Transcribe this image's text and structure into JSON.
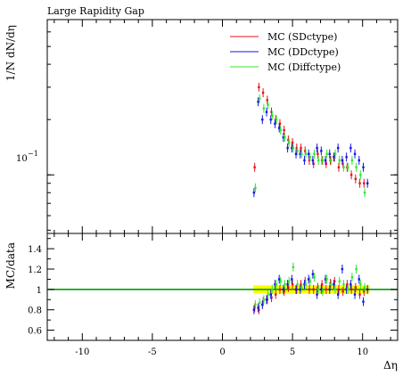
{
  "chart_data": {
    "title": "Large Rapidity Gap",
    "xlabel": "Δη",
    "ylabel_main": "1/N dN/dη",
    "ylabel_ratio": "MC/data",
    "x_ticks": [
      "-10",
      "-5",
      "0",
      "5",
      "10"
    ],
    "xlim": [
      -12.5,
      12.5
    ],
    "main_ylim": [
      0.048,
      0.7
    ],
    "main_scale": "log",
    "main_y_tick_label": "10^-1",
    "ratio_ylim": [
      0.5,
      1.55
    ],
    "ratio_ticks": [
      "0.6",
      "0.8",
      "1",
      "1.2",
      "1.4"
    ],
    "legend": {
      "placement": "top-right"
    },
    "series": [
      {
        "name": "MC (SDctype)",
        "color": "#e8101a",
        "x": [
          2.3,
          2.6,
          2.9,
          3.2,
          3.5,
          3.8,
          4.1,
          4.4,
          4.7,
          5.0,
          5.3,
          5.6,
          5.9,
          6.2,
          6.5,
          6.8,
          7.1,
          7.4,
          7.7,
          8.0,
          8.3,
          8.6,
          8.9,
          9.2,
          9.5,
          9.8,
          10.1
        ],
        "values": [
          0.11,
          0.3,
          0.28,
          0.255,
          0.22,
          0.2,
          0.19,
          0.175,
          0.155,
          0.15,
          0.14,
          0.14,
          0.135,
          0.12,
          0.115,
          0.13,
          0.12,
          0.115,
          0.12,
          0.125,
          0.11,
          0.115,
          0.11,
          0.1,
          0.095,
          0.09,
          0.09
        ],
        "ratio": [
          0.82,
          0.8,
          0.88,
          0.9,
          0.92,
          0.95,
          1.0,
          0.98,
          1.02,
          1.05,
          1.0,
          1.05,
          1.08,
          1.0,
          1.0,
          1.02,
          1.05,
          1.0,
          1.06,
          1.08,
          1.0,
          0.98,
          1.05,
          1.0,
          1.02,
          0.95,
          0.98
        ]
      },
      {
        "name": "MC (DDctype)",
        "color": "#1414e6",
        "x": [
          2.25,
          2.55,
          2.85,
          3.15,
          3.45,
          3.75,
          4.05,
          4.35,
          4.65,
          4.95,
          5.25,
          5.55,
          5.85,
          6.15,
          6.45,
          6.75,
          7.05,
          7.35,
          7.65,
          7.95,
          8.25,
          8.55,
          8.85,
          9.15,
          9.45,
          9.75,
          10.05,
          10.35
        ],
        "values": [
          0.08,
          0.25,
          0.2,
          0.22,
          0.2,
          0.19,
          0.18,
          0.16,
          0.14,
          0.14,
          0.13,
          0.13,
          0.12,
          0.13,
          0.12,
          0.14,
          0.135,
          0.12,
          0.13,
          0.125,
          0.14,
          0.12,
          0.125,
          0.14,
          0.13,
          0.12,
          0.11,
          0.09
        ],
        "ratio": [
          0.8,
          0.82,
          0.85,
          0.9,
          0.95,
          1.05,
          1.1,
          1.0,
          1.05,
          1.1,
          1.0,
          1.0,
          1.05,
          1.1,
          1.15,
          0.95,
          1.0,
          1.1,
          1.0,
          1.05,
          0.95,
          1.2,
          1.0,
          1.05,
          0.95,
          1.1,
          0.88,
          1.0
        ]
      },
      {
        "name": "MC (Diffctype)",
        "color": "#2ee82e",
        "x": [
          2.35,
          2.65,
          2.95,
          3.25,
          3.55,
          3.85,
          4.15,
          4.45,
          4.75,
          5.05,
          5.35,
          5.65,
          5.95,
          6.25,
          6.55,
          6.85,
          7.15,
          7.45,
          7.75,
          8.05,
          8.35,
          8.65,
          8.95,
          9.25,
          9.55,
          9.85,
          10.15
        ],
        "values": [
          0.085,
          0.26,
          0.23,
          0.24,
          0.21,
          0.2,
          0.175,
          0.16,
          0.15,
          0.14,
          0.135,
          0.13,
          0.13,
          0.125,
          0.13,
          0.12,
          0.12,
          0.13,
          0.12,
          0.13,
          0.12,
          0.11,
          0.11,
          0.12,
          0.11,
          0.1,
          0.08
        ],
        "ratio": [
          0.85,
          0.87,
          0.9,
          0.95,
          1.0,
          1.05,
          1.08,
          1.05,
          1.08,
          1.22,
          1.05,
          1.02,
          1.05,
          1.08,
          1.12,
          1.0,
          0.98,
          1.1,
          1.05,
          1.0,
          1.08,
          1.05,
          1.0,
          1.12,
          1.2,
          1.05,
          1.02
        ]
      }
    ],
    "data_band": {
      "xmin": 2.2,
      "xmax": 10.5,
      "ratio_lo": 0.96,
      "ratio_hi": 1.04,
      "color": "#ffff00"
    },
    "reference_line": {
      "value": 1.0,
      "color": "#00a000"
    }
  }
}
